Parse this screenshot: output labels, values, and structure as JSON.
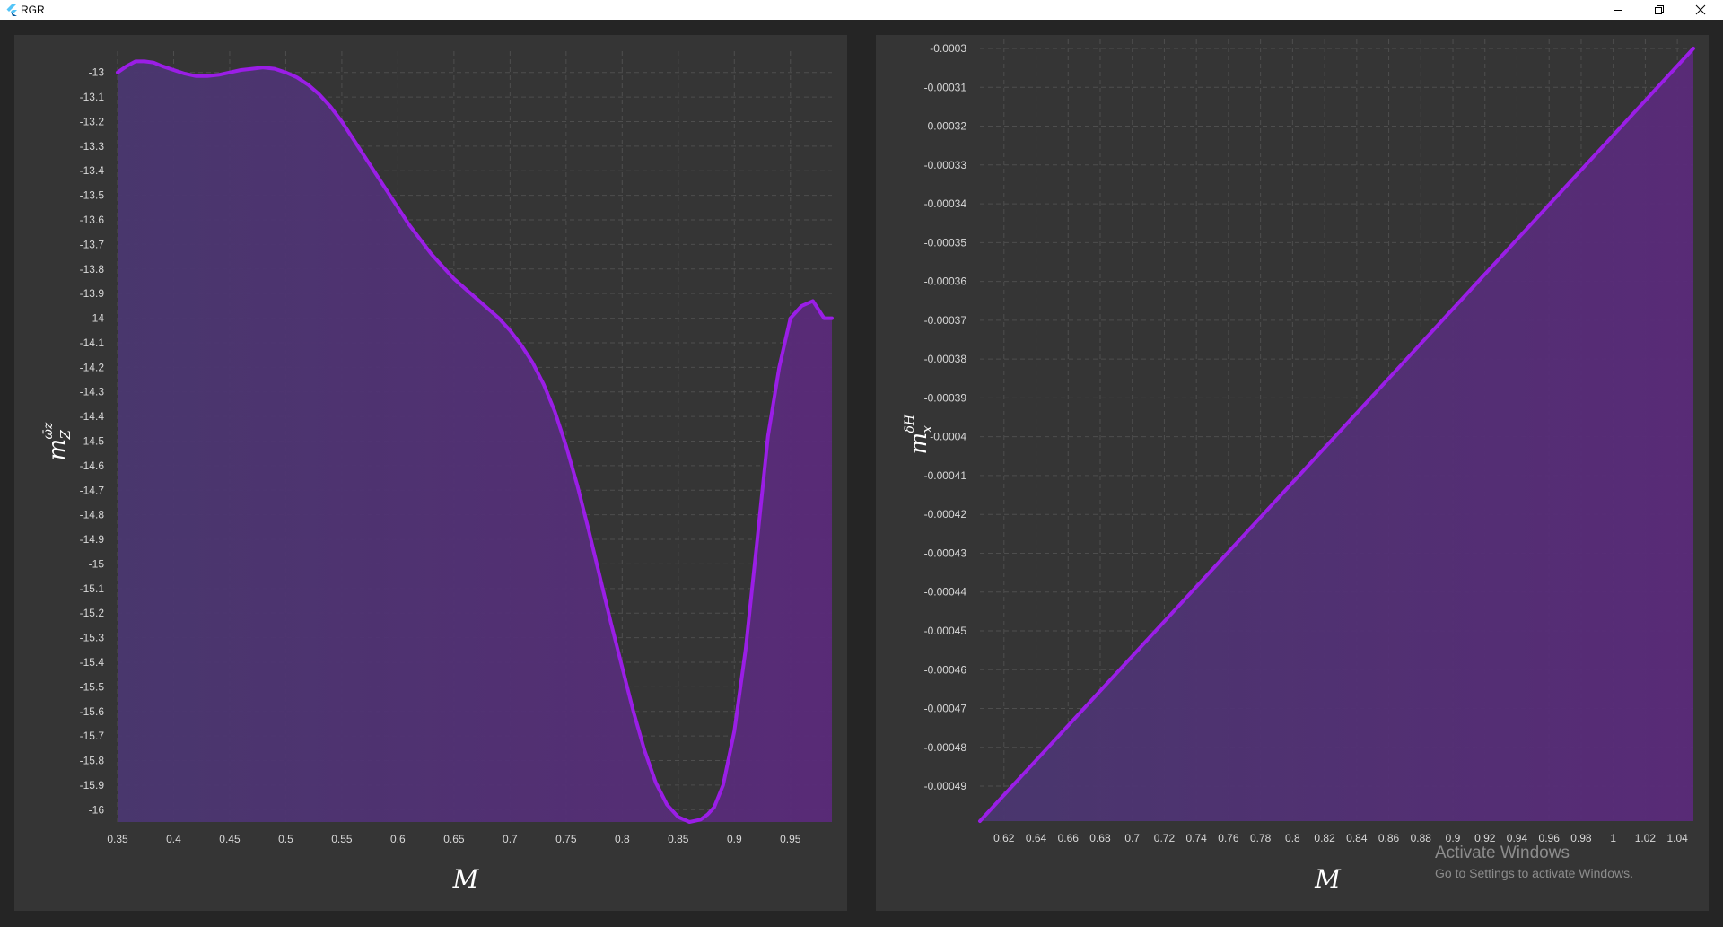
{
  "window": {
    "title": "RGR",
    "icon": "flutter-logo-icon",
    "controls": [
      "minimize-icon",
      "maximize-icon",
      "close-icon"
    ]
  },
  "chart_data": [
    {
      "type": "area",
      "title": "",
      "xlabel": "M",
      "ylabel_base": "m",
      "ylabel_sup": "ω̄z",
      "ylabel_sub": "Z",
      "xlim": [
        0.35,
        0.987
      ],
      "ylim": [
        -16.05,
        -12.95
      ],
      "xticks": [
        0.35,
        0.4,
        0.45,
        0.5,
        0.55,
        0.6,
        0.65,
        0.7,
        0.75,
        0.8,
        0.85,
        0.9,
        0.95
      ],
      "xtick_labels": [
        "0.35",
        "0.4",
        "0.45",
        "0.5",
        "0.55",
        "0.6",
        "0.65",
        "0.7",
        "0.75",
        "0.8",
        "0.85",
        "0.9",
        "0.95"
      ],
      "yticks": [
        -13,
        -13.1,
        -13.2,
        -13.3,
        -13.4,
        -13.5,
        -13.6,
        -13.7,
        -13.8,
        -13.9,
        -14,
        -14.1,
        -14.2,
        -14.3,
        -14.4,
        -14.5,
        -14.6,
        -14.7,
        -14.8,
        -14.9,
        -15,
        -15.1,
        -15.2,
        -15.3,
        -15.4,
        -15.5,
        -15.6,
        -15.7,
        -15.8,
        -15.9,
        -16
      ],
      "ytick_labels": [
        "-13",
        "-13.1",
        "-13.2",
        "-13.3",
        "-13.4",
        "-13.5",
        "-13.6",
        "-13.7",
        "-13.8",
        "-13.9",
        "-14",
        "-14.1",
        "-14.2",
        "-14.3",
        "-14.4",
        "-14.5",
        "-14.6",
        "-14.7",
        "-14.8",
        "-14.9",
        "-15",
        "-15.1",
        "-15.2",
        "-15.3",
        "-15.4",
        "-15.5",
        "-15.6",
        "-15.7",
        "-15.8",
        "-15.9",
        "-16"
      ],
      "grid": true,
      "colors": {
        "line": "#9a1ee6",
        "fill_top": "#4a3770",
        "fill_bottom": "#5a2a7a",
        "grid": "#4e4e4e"
      },
      "series": [
        {
          "x": [
            0.35,
            0.358,
            0.366,
            0.374,
            0.382,
            0.39,
            0.4,
            0.41,
            0.42,
            0.43,
            0.44,
            0.45,
            0.46,
            0.47,
            0.48,
            0.49,
            0.5,
            0.51,
            0.52,
            0.53,
            0.54,
            0.55,
            0.56,
            0.57,
            0.58,
            0.59,
            0.6,
            0.61,
            0.62,
            0.63,
            0.64,
            0.65,
            0.66,
            0.67,
            0.68,
            0.69,
            0.7,
            0.71,
            0.72,
            0.73,
            0.74,
            0.75,
            0.76,
            0.77,
            0.78,
            0.79,
            0.8,
            0.81,
            0.82,
            0.83,
            0.84,
            0.85,
            0.86,
            0.87,
            0.876,
            0.882,
            0.89,
            0.9,
            0.91,
            0.92,
            0.93,
            0.94,
            0.95,
            0.96,
            0.97,
            0.98,
            0.987
          ],
          "y": [
            -13,
            -12.975,
            -12.955,
            -12.955,
            -12.96,
            -12.975,
            -12.99,
            -13.005,
            -13.015,
            -13.015,
            -13.01,
            -13,
            -12.99,
            -12.985,
            -12.98,
            -12.985,
            -13,
            -13.02,
            -13.05,
            -13.09,
            -13.14,
            -13.2,
            -13.27,
            -13.34,
            -13.41,
            -13.48,
            -13.55,
            -13.62,
            -13.68,
            -13.74,
            -13.79,
            -13.84,
            -13.88,
            -13.92,
            -13.96,
            -14.0,
            -14.05,
            -14.11,
            -14.18,
            -14.27,
            -14.38,
            -14.52,
            -14.68,
            -14.86,
            -15.05,
            -15.24,
            -15.42,
            -15.6,
            -15.76,
            -15.89,
            -15.98,
            -16.03,
            -16.05,
            -16.04,
            -16.02,
            -15.99,
            -15.9,
            -15.68,
            -15.35,
            -14.92,
            -14.48,
            -14.2,
            -14.0,
            -13.95,
            -13.93,
            -14.0,
            -14.0
          ]
        }
      ]
    },
    {
      "type": "area",
      "title": "",
      "xlabel": "M",
      "ylabel_base": "m",
      "ylabel_sup": "δH",
      "ylabel_sub": "x",
      "xlim": [
        0.605,
        1.05
      ],
      "ylim": [
        -0.000499,
        -0.0003
      ],
      "xticks": [
        0.62,
        0.64,
        0.66,
        0.68,
        0.7,
        0.72,
        0.74,
        0.76,
        0.78,
        0.8,
        0.82,
        0.84,
        0.86,
        0.88,
        0.9,
        0.92,
        0.94,
        0.96,
        0.98,
        1,
        1.02,
        1.04
      ],
      "xtick_labels": [
        "0.62",
        "0.64",
        "0.66",
        "0.68",
        "0.7",
        "0.72",
        "0.74",
        "0.76",
        "0.78",
        "0.8",
        "0.82",
        "0.84",
        "0.86",
        "0.88",
        "0.9",
        "0.92",
        "0.94",
        "0.96",
        "0.98",
        "1",
        "1.02",
        "1.04"
      ],
      "yticks": [
        -0.0003,
        -0.00031,
        -0.00032,
        -0.00033,
        -0.00034,
        -0.00035,
        -0.00036,
        -0.00037,
        -0.00038,
        -0.00039,
        -0.0004,
        -0.00041,
        -0.00042,
        -0.00043,
        -0.00044,
        -0.00045,
        -0.00046,
        -0.00047,
        -0.00048,
        -0.00049
      ],
      "ytick_labels": [
        "-0.0003",
        "-0.00031",
        "-0.00032",
        "-0.00033",
        "-0.00034",
        "-0.00035",
        "-0.00036",
        "-0.00037",
        "-0.00038",
        "-0.00039",
        "-0.0004",
        "-0.00041",
        "-0.00042",
        "-0.00043",
        "-0.00044",
        "-0.00045",
        "-0.00046",
        "-0.00047",
        "-0.00048",
        "-0.00049"
      ],
      "grid": true,
      "colors": {
        "line": "#9a1ee6",
        "fill_top": "#4a3770",
        "fill_bottom": "#5a2a7a",
        "grid": "#4e4e4e"
      },
      "series": [
        {
          "x": [
            0.605,
            1.05
          ],
          "y": [
            -0.000499,
            -0.0003
          ]
        }
      ]
    }
  ],
  "watermark": {
    "title": "Activate Windows",
    "subtitle": "Go to Settings to activate Windows."
  }
}
